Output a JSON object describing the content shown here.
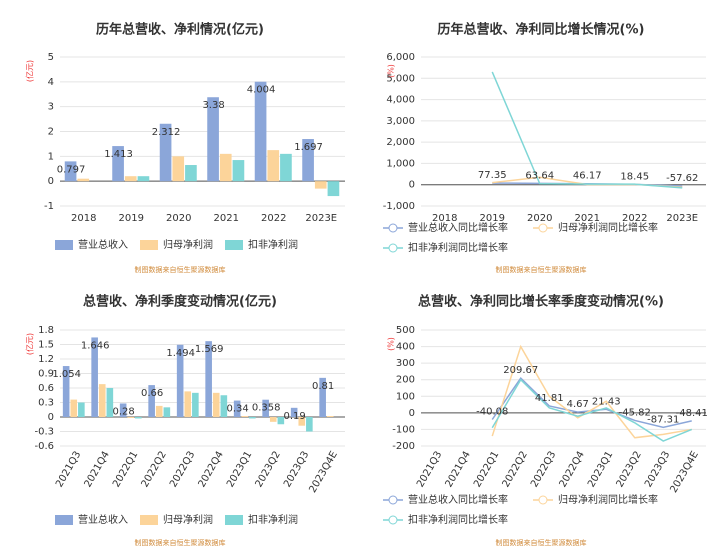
{
  "chart_data": [
    {
      "type": "bar",
      "title": "历年总营收、净利情况(亿元)",
      "y_label": "(亿元)",
      "footer": "制图数据来自恒生聚源数据库",
      "categories": [
        "2018",
        "2019",
        "2020",
        "2021",
        "2022",
        "2023E"
      ],
      "series": [
        {
          "name": "营业总收入",
          "color": "#8ba6d9",
          "data_labels": true,
          "values": [
            0.797,
            1.413,
            2.312,
            3.38,
            4.004,
            1.697
          ]
        },
        {
          "name": "归母净利润",
          "color": "#fcd49a",
          "values": [
            0.1,
            0.2,
            1.0,
            1.1,
            1.25,
            -0.3
          ]
        },
        {
          "name": "扣非净利润",
          "color": "#7fd6d6",
          "values": [
            0.0,
            0.2,
            0.65,
            0.85,
            1.1,
            -0.6
          ]
        }
      ],
      "ylim": [
        -1,
        5
      ],
      "yticks": [
        -1,
        0,
        1,
        2,
        3,
        4,
        5
      ],
      "grid": true
    },
    {
      "type": "line",
      "title": "历年总营收、净利同比增长情况(%)",
      "y_label": "(%)",
      "footer": "制图数据来自恒生聚源数据库",
      "categories": [
        "2018",
        "2019",
        "2020",
        "2021",
        "2022",
        "2023E"
      ],
      "series": [
        {
          "name": "营业总收入同比增长率",
          "color": "#8ba6d9",
          "data_labels": true,
          "values": [
            null,
            77.35,
            63.64,
            46.17,
            18.45,
            -57.62
          ]
        },
        {
          "name": "归母净利润同比增长率",
          "color": "#fcd49a",
          "values": [
            null,
            100,
            350,
            10,
            15,
            -120
          ]
        },
        {
          "name": "扣非净利润同比增长率",
          "color": "#7fd6d6",
          "values": [
            null,
            5300,
            50,
            30,
            25,
            -150
          ]
        }
      ],
      "ylim": [
        -1000,
        6000
      ],
      "yticks": [
        {
          "value": -1000,
          "label": "-1,000"
        },
        0,
        {
          "value": 1000,
          "label": "1,000"
        },
        {
          "value": 2000,
          "label": "2,000"
        },
        {
          "value": 3000,
          "label": "3,000"
        },
        {
          "value": 4000,
          "label": "4,000"
        },
        {
          "value": 5000,
          "label": "5,000"
        },
        {
          "value": 6000,
          "label": "6,000"
        }
      ],
      "grid": true
    },
    {
      "type": "bar",
      "title": "总营收、净利季度变动情况(亿元)",
      "y_label": "(亿元)",
      "footer": "制图数据来自恒生聚源数据库",
      "categories": [
        "2021Q3",
        "2021Q4",
        "2022Q1",
        "2022Q2",
        "2022Q3",
        "2022Q4",
        "2023Q1",
        "2023Q2",
        "2023Q3",
        "2023Q4E"
      ],
      "series": [
        {
          "name": "营业总收入",
          "color": "#8ba6d9",
          "data_labels": true,
          "values": [
            1.054,
            1.646,
            0.28,
            0.66,
            1.494,
            1.569,
            0.34,
            0.358,
            0.19,
            0.81
          ]
        },
        {
          "name": "归母净利润",
          "color": "#fcd49a",
          "values": [
            0.36,
            0.68,
            -0.02,
            0.23,
            0.53,
            0.5,
            0.02,
            -0.1,
            -0.18,
            0.02
          ]
        },
        {
          "name": "扣非净利润",
          "color": "#7fd6d6",
          "values": [
            0.3,
            0.6,
            -0.03,
            0.2,
            0.5,
            0.45,
            -0.03,
            -0.15,
            -0.3,
            0.0
          ]
        }
      ],
      "ylim": [
        -0.6,
        1.8
      ],
      "yticks": [
        -0.6,
        -0.3,
        0,
        0.3,
        0.6,
        0.9,
        1.2,
        1.5,
        1.8
      ],
      "grid": true
    },
    {
      "type": "line",
      "title": "总营收、净利同比增长率季度变动情况(%)",
      "y_label": "(%)",
      "footer": "制图数据来自恒生聚源数据库",
      "categories": [
        "2021Q3",
        "2021Q4",
        "2022Q1",
        "2022Q2",
        "2022Q3",
        "2022Q4",
        "2023Q1",
        "2023Q2",
        "2023Q3",
        "2023Q4E"
      ],
      "series": [
        {
          "name": "营业总收入同比增长率",
          "color": "#8ba6d9",
          "data_labels": true,
          "values": [
            null,
            null,
            -40.08,
            209.67,
            41.81,
            4.67,
            21.43,
            -45.82,
            -87.31,
            -48.41
          ]
        },
        {
          "name": "归母净利润同比增长率",
          "color": "#fcd49a",
          "values": [
            null,
            null,
            -140,
            400,
            100,
            -30,
            70,
            -150,
            -130,
            -100
          ]
        },
        {
          "name": "扣非净利润同比增长率",
          "color": "#7fd6d6",
          "values": [
            null,
            null,
            -90,
            200,
            30,
            -20,
            30,
            -60,
            -170,
            -100
          ]
        }
      ],
      "ylim": [
        -200,
        500
      ],
      "yticks": [
        -200,
        -100,
        0,
        100,
        200,
        300,
        400,
        500
      ],
      "grid": true
    }
  ]
}
